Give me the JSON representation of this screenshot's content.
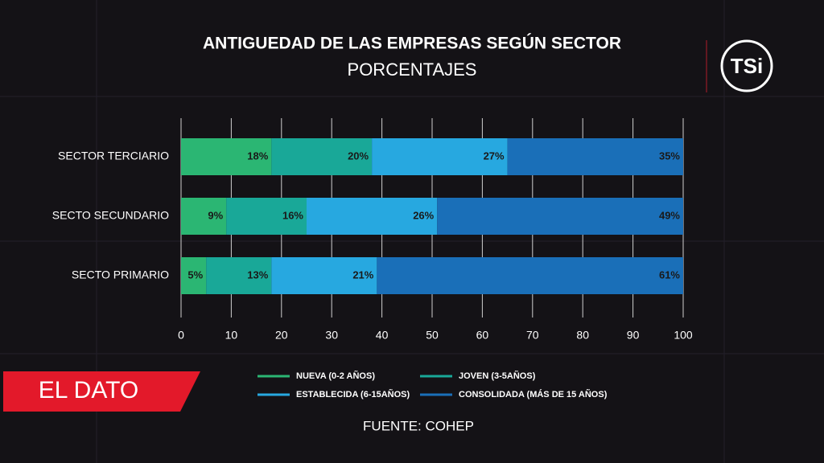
{
  "chart_data": {
    "type": "stacked-bar-horizontal",
    "title": "ANTIGUEDAD DE LAS EMPRESAS SEGÚN SECTOR",
    "subtitle": "PORCENTAJES",
    "categories": [
      "SECTOR TERCIARIO",
      "SECTO SECUNDARIO",
      "SECTO PRIMARIO"
    ],
    "series": [
      {
        "name": "NUEVA (0-2 AÑOS)",
        "color": "#2bb673",
        "values": [
          18,
          9,
          5
        ],
        "value_labels": [
          "18%",
          "9%",
          "5%"
        ]
      },
      {
        "name": "JOVEN (3-5AÑOS)",
        "color": "#19a898",
        "values": [
          20,
          16,
          13
        ],
        "value_labels": [
          "20%",
          "16%",
          "13%"
        ]
      },
      {
        "name": "ESTABLECIDA (6-15AÑOS)",
        "color": "#27a8e0",
        "values": [
          27,
          26,
          21
        ],
        "value_labels": [
          "27%",
          "26%",
          "21%"
        ]
      },
      {
        "name": "CONSOLIDADA (MÁS DE 15 AÑOS)",
        "color": "#1a6fb8",
        "values": [
          35,
          49,
          61
        ],
        "value_labels": [
          "35%",
          "49%",
          "61%"
        ]
      }
    ],
    "xlim": [
      0,
      100
    ],
    "xticks": [
      0,
      10,
      20,
      30,
      40,
      50,
      60,
      70,
      80,
      90,
      100
    ],
    "grid": true,
    "source": "FUENTE: COHEP"
  },
  "branding": {
    "program": "EL DATO",
    "channel": "TSi"
  }
}
